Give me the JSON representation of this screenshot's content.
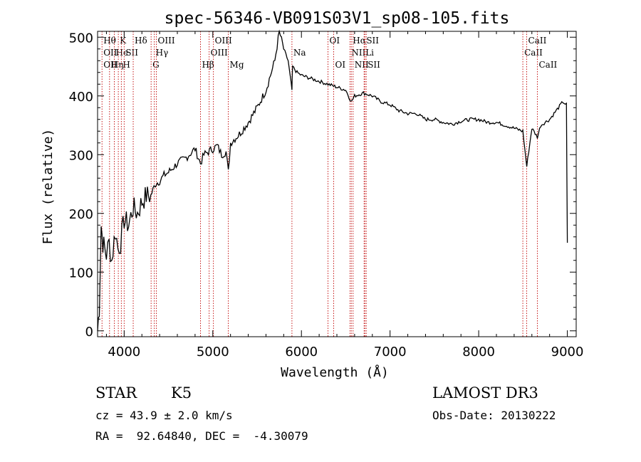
{
  "chart_data": {
    "type": "line",
    "title": "spec-56346-VB091S03V1_sp08-105.fits",
    "xlabel": "Wavelength (Å)",
    "ylabel": "Flux (relative)",
    "xlim": [
      3700,
      9100
    ],
    "ylim": [
      -10,
      510
    ],
    "xticks": [
      4000,
      5000,
      6000,
      7000,
      8000,
      9000
    ],
    "yticks": [
      0,
      100,
      200,
      300,
      400,
      500
    ],
    "series": [
      {
        "name": "flux",
        "x": [
          3700,
          3720,
          3740,
          3760,
          3780,
          3800,
          3830,
          3860,
          3900,
          3930,
          3960,
          4000,
          4050,
          4100,
          4150,
          4200,
          4250,
          4300,
          4350,
          4400,
          4450,
          4500,
          4600,
          4700,
          4800,
          4861,
          4900,
          4950,
          5000,
          5050,
          5100,
          5150,
          5175,
          5200,
          5300,
          5400,
          5500,
          5600,
          5700,
          5750,
          5800,
          5850,
          5893,
          5900,
          5950,
          6000,
          6100,
          6200,
          6300,
          6400,
          6500,
          6563,
          6600,
          6700,
          6800,
          6900,
          7000,
          7100,
          7200,
          7300,
          7400,
          7500,
          7600,
          7700,
          7800,
          7900,
          8000,
          8100,
          8200,
          8300,
          8400,
          8498,
          8542,
          8600,
          8662,
          8700,
          8800,
          8900,
          8950,
          8990,
          9000
        ],
        "values": [
          0,
          40,
          180,
          150,
          140,
          130,
          150,
          120,
          170,
          140,
          150,
          190,
          180,
          210,
          200,
          220,
          230,
          230,
          250,
          255,
          265,
          270,
          285,
          295,
          310,
          285,
          300,
          305,
          310,
          315,
          300,
          305,
          270,
          320,
          335,
          355,
          380,
          410,
          460,
          510,
          480,
          460,
          410,
          450,
          440,
          435,
          430,
          425,
          420,
          415,
          410,
          390,
          400,
          405,
          400,
          390,
          385,
          375,
          370,
          370,
          360,
          360,
          355,
          352,
          357,
          360,
          360,
          355,
          355,
          350,
          345,
          340,
          280,
          345,
          330,
          350,
          360,
          380,
          390,
          385,
          150
        ]
      }
    ],
    "lines": [
      {
        "x": 3750,
        "labels": [
          {
            "text": "Hθ",
            "row": 0
          },
          {
            "text": "OII",
            "row": 1
          },
          {
            "text": "OII",
            "row": 2
          }
        ]
      },
      {
        "x": 3835,
        "labels": [
          {
            "text": "Hη",
            "row": 2
          }
        ]
      },
      {
        "x": 3889,
        "labels": [
          {
            "text": "He",
            "row": 1
          }
        ]
      },
      {
        "x": 3934,
        "labels": [
          {
            "text": "K",
            "row": 0
          }
        ]
      },
      {
        "x": 3968,
        "labels": [
          {
            "text": "H",
            "row": 2
          }
        ]
      },
      {
        "x": 4000,
        "labels": [
          {
            "text": "SII",
            "row": 1
          }
        ]
      },
      {
        "x": 4102,
        "labels": [
          {
            "text": "Hδ",
            "row": 0
          }
        ]
      },
      {
        "x": 4304,
        "labels": [
          {
            "text": "G",
            "row": 2
          }
        ]
      },
      {
        "x": 4340,
        "labels": [
          {
            "text": "Hγ",
            "row": 1
          }
        ]
      },
      {
        "x": 4363,
        "labels": [
          {
            "text": "OIII",
            "row": 0
          }
        ]
      },
      {
        "x": 4861,
        "labels": [
          {
            "text": "Hβ",
            "row": 2
          }
        ]
      },
      {
        "x": 4959,
        "labels": [
          {
            "text": "OIII",
            "row": 1
          }
        ]
      },
      {
        "x": 5007,
        "labels": [
          {
            "text": "OIII",
            "row": 0
          }
        ]
      },
      {
        "x": 5175,
        "labels": [
          {
            "text": "Mg",
            "row": 2
          }
        ]
      },
      {
        "x": 5893,
        "labels": [
          {
            "text": "Na",
            "row": 1
          }
        ]
      },
      {
        "x": 6300,
        "labels": [
          {
            "text": "OI",
            "row": 0
          }
        ]
      },
      {
        "x": 6364,
        "labels": [
          {
            "text": "OI",
            "row": 2
          }
        ]
      },
      {
        "x": 6548,
        "labels": [
          {
            "text": "NII",
            "row": 1
          }
        ]
      },
      {
        "x": 6563,
        "labels": [
          {
            "text": "Hα",
            "row": 0
          }
        ]
      },
      {
        "x": 6583,
        "labels": [
          {
            "text": "NII",
            "row": 2
          }
        ]
      },
      {
        "x": 6707,
        "labels": [
          {
            "text": "Li",
            "row": 1
          }
        ]
      },
      {
        "x": 6716,
        "labels": [
          {
            "text": "SII",
            "row": 0
          }
        ]
      },
      {
        "x": 6731,
        "labels": [
          {
            "text": "SII",
            "row": 2
          }
        ]
      },
      {
        "x": 8498,
        "labels": [
          {
            "text": "CaII",
            "row": 1
          }
        ]
      },
      {
        "x": 8542,
        "labels": [
          {
            "text": "CaII",
            "row": 0
          }
        ]
      },
      {
        "x": 8662,
        "labels": [
          {
            "text": "CaII",
            "row": 2
          }
        ]
      }
    ]
  },
  "info": {
    "class": "STAR",
    "subclass": "K5",
    "survey": "LAMOST DR3",
    "cz": "cz = 43.9 ± 2.0 km/s",
    "obs_date": "Obs-Date: 20130222",
    "radec": "RA =  92.64840, DEC =  -4.30079"
  }
}
